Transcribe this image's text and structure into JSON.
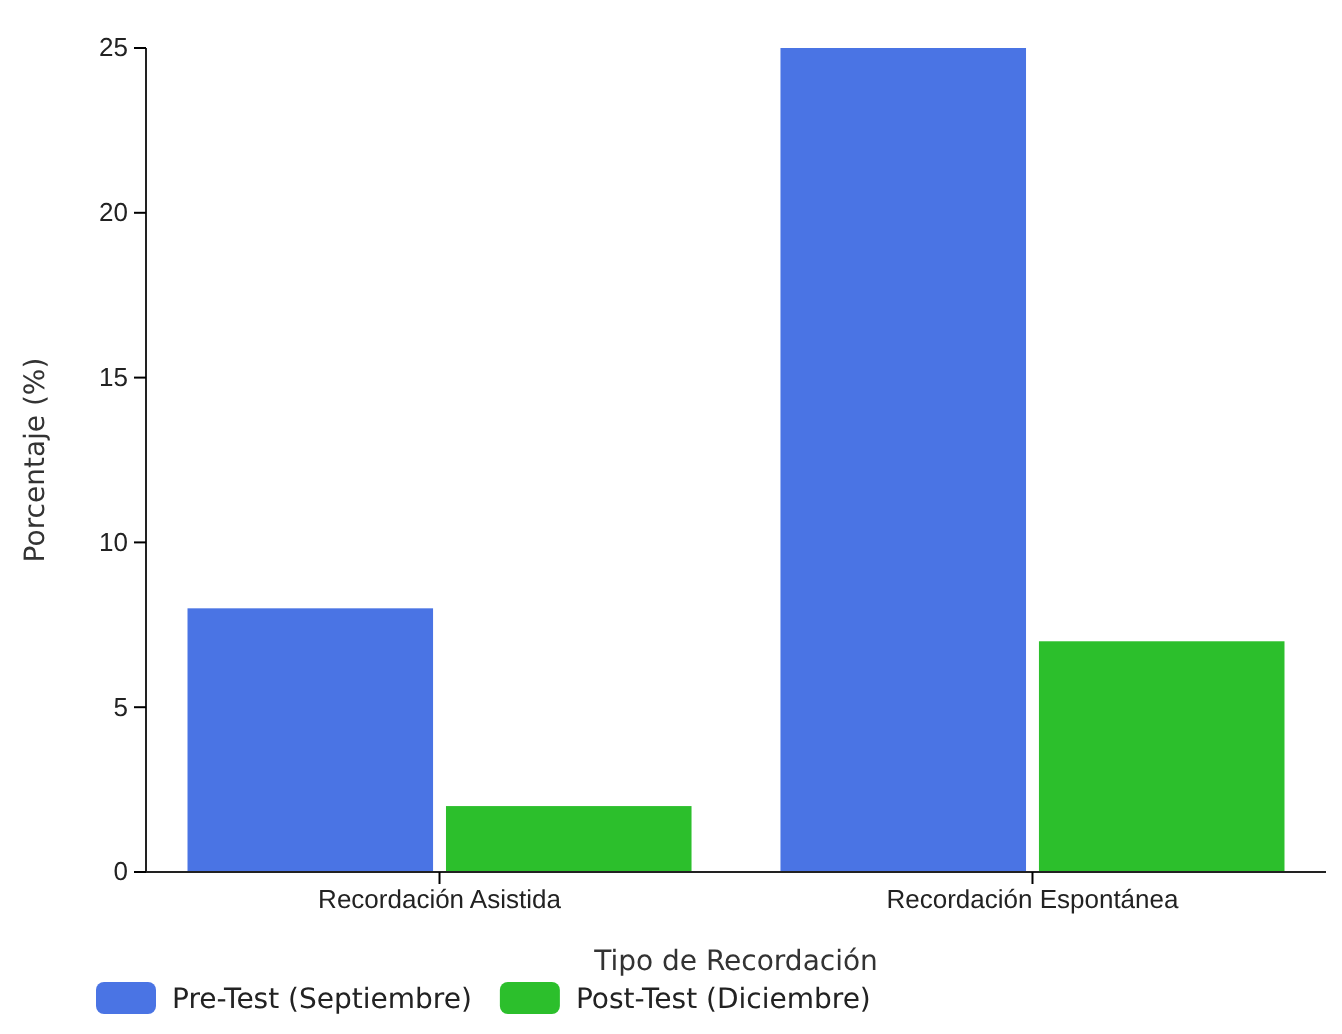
{
  "chart_data": {
    "type": "bar",
    "xlabel": "Tipo de Recordación",
    "ylabel": "Porcentaje (%)",
    "categories": [
      "Recordación Asistida",
      "Recordación Espontánea"
    ],
    "series": [
      {
        "name": "Pre-Test (Septiembre)",
        "color": "#4a74e4",
        "values": [
          8,
          25
        ]
      },
      {
        "name": "Post-Test (Diciembre)",
        "color": "#2cbf2c",
        "values": [
          2,
          7
        ]
      }
    ],
    "ylim": [
      0,
      25
    ],
    "yticks": [
      0,
      5,
      10,
      15,
      20,
      25
    ],
    "grid": false,
    "legend": "bottom"
  }
}
